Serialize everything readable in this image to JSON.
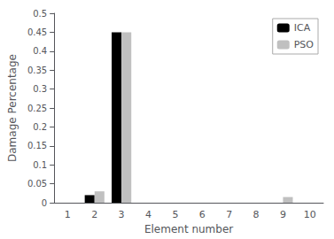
{
  "chart_data": {
    "type": "bar",
    "xlabel": "Element number",
    "ylabel": "Damage Percentage",
    "categories": [
      1,
      2,
      3,
      4,
      5,
      6,
      7,
      8,
      9,
      10
    ],
    "series": [
      {
        "name": "ICA",
        "color": "#000000",
        "values": [
          0,
          0.02,
          0.45,
          0,
          0,
          0,
          0,
          0,
          0,
          0
        ]
      },
      {
        "name": "PSO",
        "color": "#c0c0c0",
        "values": [
          0,
          0.03,
          0.45,
          0,
          0,
          0,
          0,
          0,
          0.015,
          0
        ]
      }
    ],
    "ylim": [
      0,
      0.5
    ],
    "yticks": [
      0,
      0.05,
      0.1,
      0.15,
      0.2,
      0.25,
      0.3,
      0.35,
      0.4,
      0.45,
      0.5
    ],
    "legend": "upper right",
    "grid": false
  }
}
